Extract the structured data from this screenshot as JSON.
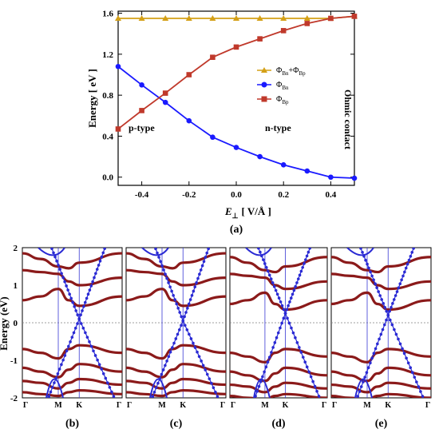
{
  "chart_data": [
    {
      "type": "line",
      "panel": "(a)",
      "xlabel_main": "E",
      "xlabel_sub": "⊥",
      "xlabel_unit": "[ V/Å ]",
      "ylabel": "Energy [ eV ]",
      "xlim": [
        -0.5,
        0.5
      ],
      "ylim": [
        -0.08,
        1.62
      ],
      "xticks": [
        -0.4,
        -0.2,
        0.0,
        0.2,
        0.4
      ],
      "xtick_labels": [
        "-0.4",
        "-0.2",
        "0.0",
        "0.2",
        "0.4"
      ],
      "yticks": [
        0.0,
        0.4,
        0.8,
        1.2,
        1.6
      ],
      "ytick_labels": [
        "0.0",
        "0.4",
        "0.8",
        "1.2",
        "1.6"
      ],
      "x": [
        -0.5,
        -0.4,
        -0.3,
        -0.2,
        -0.1,
        0.0,
        0.1,
        0.2,
        0.3,
        0.4,
        0.5
      ],
      "series": [
        {
          "name": "ΦBn+ΦBp",
          "legend_main": "Φ",
          "legend_sub1": "Bn",
          "legend_mid": "+Φ",
          "legend_sub2": "Bp",
          "marker": "triangle",
          "color": "#d4a017",
          "values": [
            1.55,
            1.55,
            1.55,
            1.55,
            1.55,
            1.55,
            1.55,
            1.55,
            1.55,
            1.55,
            1.57
          ]
        },
        {
          "name": "ΦBn",
          "legend_main": "Φ",
          "legend_sub1": "Bn",
          "marker": "circle",
          "color": "#1a1aff",
          "values": [
            1.08,
            0.9,
            0.73,
            0.55,
            0.39,
            0.29,
            0.2,
            0.12,
            0.06,
            0.0,
            -0.01
          ]
        },
        {
          "name": "ΦBp",
          "legend_main": "Φ",
          "legend_sub1": "Bp",
          "marker": "square",
          "color": "#c0392b",
          "values": [
            0.47,
            0.65,
            0.82,
            1.0,
            1.17,
            1.27,
            1.35,
            1.43,
            1.5,
            1.55,
            1.57
          ]
        }
      ],
      "annotations": {
        "p_type": "p-type",
        "n_type": "n-type",
        "ohmic": "Ohmic contact"
      }
    },
    {
      "type": "band-structure",
      "panels": [
        "(b)",
        "(c)",
        "(d)",
        "(e)"
      ],
      "ylabel": "Energy (eV)",
      "ylim": [
        -2,
        2
      ],
      "yticks": [
        2,
        1,
        0,
        -1,
        -2
      ],
      "ytick_labels": [
        "2",
        "1",
        "0",
        "-1",
        "-2"
      ],
      "kpoints": [
        "Γ",
        "M",
        "K",
        "Γ"
      ],
      "fermi_level": 0,
      "colors": {
        "substrate_bands": "#8b1a1a",
        "dirac_bands": "#2a2ad4",
        "fermi_line": "#808080"
      }
    }
  ]
}
